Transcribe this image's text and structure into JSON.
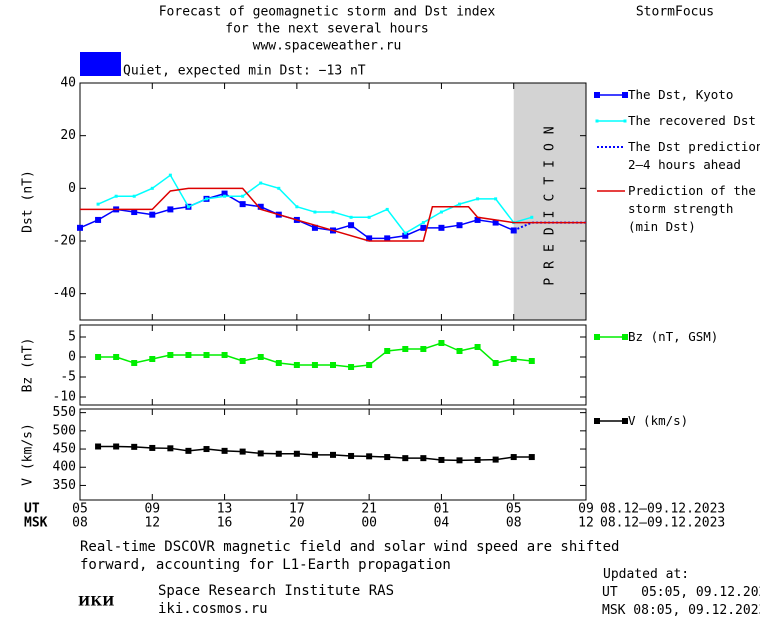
{
  "header": {
    "title_lines": [
      "Forecast of geomagnetic storm and Dst index",
      "for the next several hours",
      "www.spaceweather.ru"
    ],
    "brand": "StormFocus"
  },
  "status": {
    "label": "Quiet, expected min Dst: −13 nT",
    "color": "#0000ff"
  },
  "chart_data": [
    {
      "type": "line",
      "y_label": "Dst (nT)",
      "annotation": "PREDICTION",
      "prediction_xlim": [
        24,
        28
      ],
      "prediction_color": "#d3d3d3",
      "xlim": [
        0,
        28
      ],
      "ylim": [
        -50,
        40
      ],
      "yticks": [
        -40,
        -20,
        0,
        20,
        40
      ],
      "series": [
        {
          "name": "The Dst, Kyoto",
          "color": "#0000ff",
          "marker": "square",
          "dotted": false,
          "x": [
            0,
            1,
            2,
            3,
            4,
            5,
            6,
            7,
            8,
            9,
            10,
            11,
            12,
            13,
            14,
            15,
            16,
            17,
            18,
            19,
            20,
            21,
            22,
            23,
            24
          ],
          "values": [
            -15,
            -12,
            -8,
            -9,
            -10,
            -8,
            -7,
            -4,
            -2,
            -6,
            -7,
            -10,
            -12,
            -15,
            -16,
            -14,
            -19,
            -19,
            -18,
            -15,
            -15,
            -14,
            -12,
            -13,
            -16
          ]
        },
        {
          "name": "The recovered Dst",
          "color": "#00ffff",
          "marker": "dot",
          "dotted": false,
          "x": [
            1,
            2,
            3,
            4,
            5,
            6,
            7,
            8,
            9,
            10,
            11,
            12,
            13,
            14,
            15,
            16,
            17,
            18,
            19,
            20,
            21,
            22,
            23,
            24,
            25
          ],
          "values": [
            -6,
            -3,
            -3,
            0,
            5,
            -7,
            -4,
            -3,
            -3,
            2,
            0,
            -7,
            -9,
            -9,
            -11,
            -11,
            -8,
            -17,
            -13,
            -9,
            -6,
            -4,
            -4,
            -13,
            -11
          ]
        },
        {
          "name": "The Dst prediction 2–4 hours ahead",
          "color": "#0000ff",
          "marker": "none",
          "dotted": true,
          "x": [
            24,
            25,
            28
          ],
          "values": [
            -16,
            -13,
            -13
          ]
        },
        {
          "name": "Prediction of the storm strength (min Dst)",
          "color": "#dd0000",
          "marker": "none",
          "dotted": false,
          "x": [
            0,
            4,
            5,
            6,
            9,
            10,
            12,
            14,
            16,
            19,
            19.5,
            21.5,
            22,
            24,
            28
          ],
          "values": [
            -8,
            -8,
            -1,
            0,
            0,
            -8,
            -12,
            -16,
            -20,
            -20,
            -7,
            -7,
            -11,
            -13,
            -13
          ]
        }
      ]
    },
    {
      "type": "line",
      "y_label": "Bz (nT)",
      "xlim": [
        0,
        28
      ],
      "ylim": [
        -12,
        8
      ],
      "yticks": [
        -10,
        -5,
        0,
        5
      ],
      "series": [
        {
          "name": "Bz (nT, GSM)",
          "color": "#00ee00",
          "marker": "square",
          "dotted": false,
          "x": [
            1,
            2,
            3,
            4,
            5,
            6,
            7,
            8,
            9,
            10,
            11,
            12,
            13,
            14,
            15,
            16,
            17,
            18,
            19,
            20,
            21,
            22,
            23,
            24,
            25
          ],
          "values": [
            0,
            0,
            -1.5,
            -0.5,
            0.5,
            0.5,
            0.5,
            0.5,
            -1,
            0,
            -1.5,
            -2,
            -2,
            -2,
            -2.5,
            -2,
            1.5,
            2,
            2,
            3.5,
            1.5,
            2.5,
            -1.5,
            -0.5,
            -1
          ]
        }
      ]
    },
    {
      "type": "line",
      "y_label": "V (km/s)",
      "xlim": [
        0,
        28
      ],
      "ylim": [
        310,
        560
      ],
      "yticks": [
        350,
        400,
        450,
        500,
        550
      ],
      "xticks": [
        {
          "value": 0,
          "label": "05"
        },
        {
          "value": 4,
          "label": "09"
        },
        {
          "value": 8,
          "label": "13"
        },
        {
          "value": 12,
          "label": "17"
        },
        {
          "value": 16,
          "label": "21"
        },
        {
          "value": 20,
          "label": "01"
        },
        {
          "value": 24,
          "label": "05"
        },
        {
          "value": 28,
          "label": "09"
        }
      ],
      "xticks_msk": [
        {
          "value": 0,
          "label": "08"
        },
        {
          "value": 4,
          "label": "12"
        },
        {
          "value": 8,
          "label": "16"
        },
        {
          "value": 12,
          "label": "20"
        },
        {
          "value": 16,
          "label": "00"
        },
        {
          "value": 20,
          "label": "04"
        },
        {
          "value": 24,
          "label": "08"
        },
        {
          "value": 28,
          "label": "12"
        }
      ],
      "x_row_labels": [
        "UT",
        "MSK"
      ],
      "x_date_ranges": [
        "08.12–09.12.2023",
        "08.12–09.12.2023"
      ],
      "series": [
        {
          "name": "V (km/s)",
          "color": "#000000",
          "marker": "square",
          "dotted": false,
          "x": [
            1,
            2,
            3,
            4,
            5,
            6,
            7,
            8,
            9,
            10,
            11,
            12,
            13,
            14,
            15,
            16,
            17,
            18,
            19,
            20,
            21,
            22,
            23,
            24,
            25
          ],
          "values": [
            457,
            457,
            456,
            453,
            452,
            445,
            450,
            445,
            443,
            438,
            437,
            437,
            434,
            434,
            431,
            430,
            428,
            425,
            425,
            420,
            419,
            420,
            421,
            428,
            428
          ]
        }
      ]
    }
  ],
  "footer": {
    "note_lines": [
      "Real-time DSCOVR magnetic field and solar wind speed are shifted",
      "forward, accounting for L1-Earth propagation"
    ],
    "logo": "ИКИ",
    "institute": "Space Research Institute RAS",
    "url": "iki.cosmos.ru",
    "updated_lines": [
      "Updated at:",
      "UT   05:05, 09.12.2023",
      "MSK 08:05, 09.12.2023"
    ]
  }
}
